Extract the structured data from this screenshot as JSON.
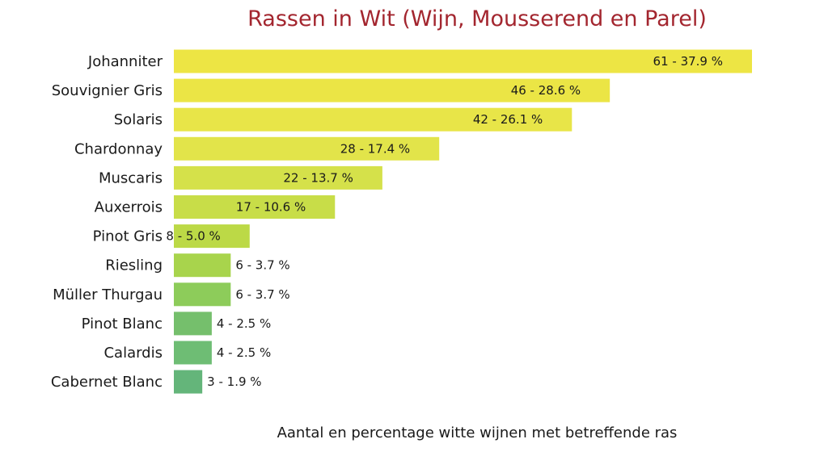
{
  "chart_data": {
    "type": "bar",
    "orientation": "horizontal",
    "title": "Rassen in Wit (Wijn, Mousserend en Parel)",
    "xlabel": "Aantal en percentage witte wijnen met betreffende ras",
    "ylabel": "",
    "xlim": [
      0,
      61
    ],
    "grid": false,
    "categories": [
      "Johanniter",
      "Souvignier Gris",
      "Solaris",
      "Chardonnay",
      "Muscaris",
      "Auxerrois",
      "Pinot Gris",
      "Riesling",
      "Müller Thurgau",
      "Pinot Blanc",
      "Calardis",
      "Cabernet Blanc"
    ],
    "values": [
      61,
      46,
      42,
      28,
      22,
      17,
      8,
      6,
      6,
      4,
      4,
      3
    ],
    "data_labels": [
      "61 - 37.9 %",
      "46 - 28.6 %",
      "42 - 26.1 %",
      "28 - 17.4 %",
      "22 - 13.7 %",
      "17 - 10.6 %",
      "8 - 5.0 %",
      "6 - 3.7 %",
      "6 - 3.7 %",
      "4 - 2.5 %",
      "4 - 2.5 %",
      "3 - 1.9 %"
    ],
    "colors": [
      "#ede544",
      "#ebe545",
      "#e8e548",
      "#e2e44a",
      "#d5e14a",
      "#c8dd48",
      "#bcd946",
      "#a8d44c",
      "#8dcc5a",
      "#75bf6c",
      "#6ebd74",
      "#64b57a"
    ],
    "title_color": "#a3262f"
  }
}
